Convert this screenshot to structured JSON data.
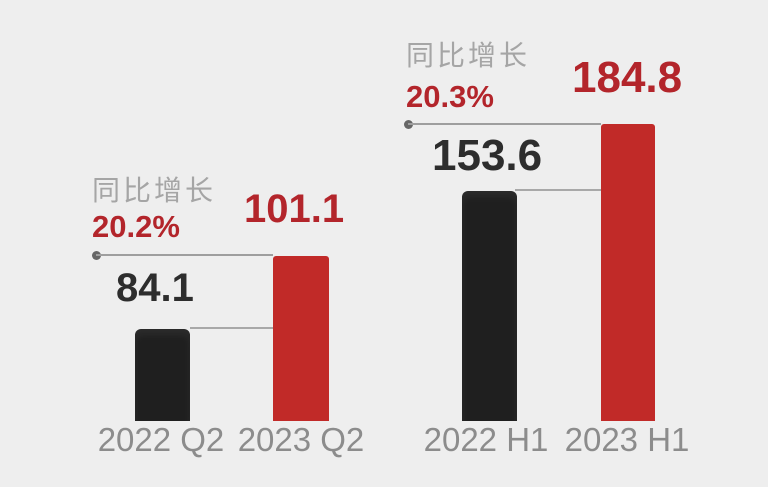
{
  "background": "#eeeeee",
  "colors": {
    "bar_2022": "#1f1f1f",
    "bar_2023": "#c12a28",
    "value_2022_text": "#2d2d2d",
    "value_2023_text": "#b3252b",
    "growth_label_text": "#a5a5a5",
    "growth_pct_text": "#b3252b",
    "category_text": "#8c8c8c",
    "leader_line": "#9e9e9e"
  },
  "chart_data": {
    "type": "bar",
    "title": "",
    "legend": "none",
    "axes": "none",
    "groups": [
      {
        "name": "Q2",
        "categories": [
          "2022 Q2",
          "2023 Q2"
        ],
        "values": [
          84.1,
          101.1
        ],
        "growth_label": "同比增长",
        "growth_pct": "20.2%"
      },
      {
        "name": "H1",
        "categories": [
          "2022 H1",
          "2023 H1"
        ],
        "values": [
          153.6,
          184.8
        ],
        "growth_label": "同比增长",
        "growth_pct": "20.3%"
      }
    ],
    "series_colors": {
      "2022": "#1f1f1f",
      "2023": "#c12a28"
    }
  }
}
